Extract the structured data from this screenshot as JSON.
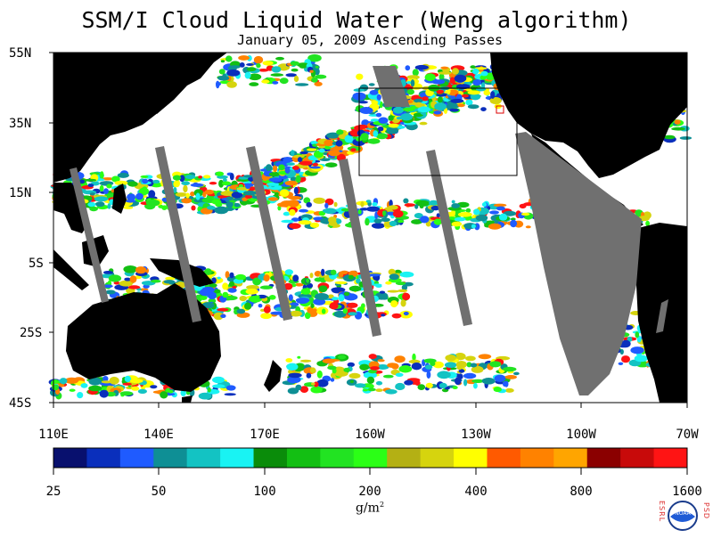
{
  "title": "SSM/I Cloud Liquid Water (Weng algorithm)",
  "subtitle": "January 05, 2009  Ascending Passes",
  "lat_labels": [
    "55N",
    "35N",
    "15N",
    "5S",
    "25S",
    "45S"
  ],
  "lon_labels": [
    "110E",
    "140E",
    "170E",
    "160W",
    "130W",
    "100W",
    "70W"
  ],
  "colorbar": {
    "labels": [
      "25",
      "50",
      "100",
      "200",
      "400",
      "800",
      "1600"
    ],
    "colors": [
      "#08106e",
      "#0a2fbc",
      "#1f5bff",
      "#0e8f95",
      "#13c3c3",
      "#19f3f3",
      "#0a8c0a",
      "#13bf13",
      "#22e322",
      "#2bff16",
      "#b4b014",
      "#d6d40e",
      "#ffff00",
      "#ff5a00",
      "#ff8200",
      "#ffa500",
      "#8b0000",
      "#c80a0a",
      "#ff1414"
    ],
    "units": "g/m",
    "units_sup": "2"
  },
  "map": {
    "ocean_color": "#ffffff",
    "land_color": "#000000",
    "nodata_color": "#707070"
  },
  "logo": {
    "center_text": "NOAA",
    "left_letters": "ESRL",
    "right_letters": "PSD"
  }
}
